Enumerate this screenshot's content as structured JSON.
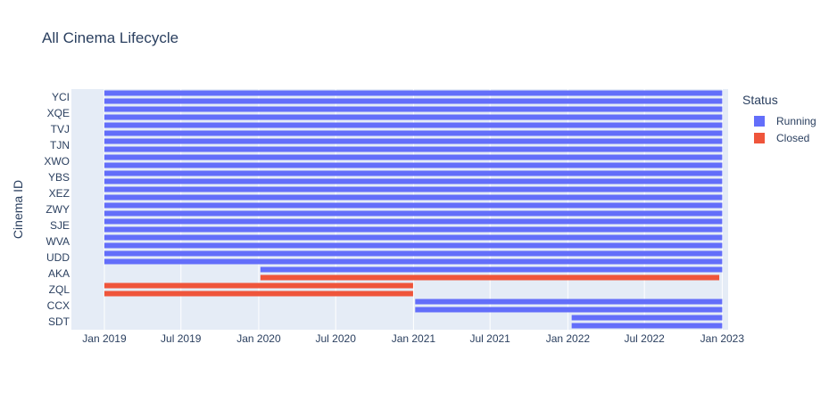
{
  "chart_data": {
    "type": "bar",
    "orientation": "horizontal-timeline",
    "title": "All Cinema Lifecycle",
    "xlabel": "",
    "ylabel": "Cinema ID",
    "x_range": [
      "2018-10-15",
      "2023-01-15"
    ],
    "x_ticks": [
      {
        "date": "2019-01-01",
        "label": "Jan 2019"
      },
      {
        "date": "2019-07-01",
        "label": "Jul 2019"
      },
      {
        "date": "2020-01-01",
        "label": "Jan 2020"
      },
      {
        "date": "2020-07-01",
        "label": "Jul 2020"
      },
      {
        "date": "2021-01-01",
        "label": "Jan 2021"
      },
      {
        "date": "2021-07-01",
        "label": "Jul 2021"
      },
      {
        "date": "2022-01-01",
        "label": "Jan 2022"
      },
      {
        "date": "2022-07-01",
        "label": "Jul 2022"
      },
      {
        "date": "2023-01-01",
        "label": "Jan 2023"
      }
    ],
    "y_ticks": [
      "YCI",
      "XQE",
      "TVJ",
      "TJN",
      "XWO",
      "YBS",
      "XEZ",
      "ZWY",
      "SJE",
      "WVA",
      "UDD",
      "AKA",
      "ZQL",
      "CCX",
      "SDT"
    ],
    "grid": true,
    "legend_title": "Status",
    "legend_placement": "top-right",
    "series": [
      {
        "name": "Running",
        "color": "#636efa"
      },
      {
        "name": "Closed",
        "color": "#ef553b"
      }
    ],
    "rows": [
      {
        "status": "Running",
        "start": "2019-01-01",
        "end": "2023-01-01"
      },
      {
        "status": "Running",
        "start": "2019-01-01",
        "end": "2023-01-01"
      },
      {
        "status": "Running",
        "start": "2019-01-01",
        "end": "2023-01-01"
      },
      {
        "status": "Running",
        "start": "2019-01-01",
        "end": "2023-01-01"
      },
      {
        "status": "Running",
        "start": "2019-01-01",
        "end": "2023-01-01"
      },
      {
        "status": "Running",
        "start": "2019-01-01",
        "end": "2023-01-01"
      },
      {
        "status": "Running",
        "start": "2019-01-01",
        "end": "2023-01-01"
      },
      {
        "status": "Running",
        "start": "2019-01-01",
        "end": "2023-01-01"
      },
      {
        "status": "Running",
        "start": "2019-01-01",
        "end": "2023-01-01"
      },
      {
        "status": "Running",
        "start": "2019-01-01",
        "end": "2023-01-01"
      },
      {
        "status": "Running",
        "start": "2019-01-01",
        "end": "2023-01-01"
      },
      {
        "status": "Running",
        "start": "2019-01-01",
        "end": "2023-01-01"
      },
      {
        "status": "Running",
        "start": "2019-01-01",
        "end": "2023-01-01"
      },
      {
        "status": "Running",
        "start": "2019-01-01",
        "end": "2023-01-01"
      },
      {
        "status": "Running",
        "start": "2019-01-01",
        "end": "2023-01-01"
      },
      {
        "status": "Running",
        "start": "2019-01-01",
        "end": "2023-01-01"
      },
      {
        "status": "Running",
        "start": "2019-01-01",
        "end": "2023-01-01"
      },
      {
        "status": "Running",
        "start": "2019-01-01",
        "end": "2023-01-01"
      },
      {
        "status": "Running",
        "start": "2019-01-01",
        "end": "2023-01-01"
      },
      {
        "status": "Running",
        "start": "2019-01-01",
        "end": "2023-01-01"
      },
      {
        "status": "Running",
        "start": "2019-01-01",
        "end": "2023-01-01"
      },
      {
        "status": "Running",
        "start": "2019-01-01",
        "end": "2023-01-01"
      },
      {
        "status": "Running",
        "start": "2020-01-05",
        "end": "2023-01-01"
      },
      {
        "status": "Closed",
        "start": "2020-01-05",
        "end": "2022-12-25"
      },
      {
        "status": "Closed",
        "start": "2019-01-01",
        "end": "2020-12-31"
      },
      {
        "status": "Closed",
        "start": "2019-01-01",
        "end": "2020-12-31"
      },
      {
        "status": "Running",
        "start": "2021-01-05",
        "end": "2023-01-01"
      },
      {
        "status": "Running",
        "start": "2021-01-05",
        "end": "2023-01-01"
      },
      {
        "status": "Running",
        "start": "2022-01-10",
        "end": "2023-01-01"
      },
      {
        "status": "Running",
        "start": "2022-01-10",
        "end": "2023-01-01"
      }
    ]
  }
}
